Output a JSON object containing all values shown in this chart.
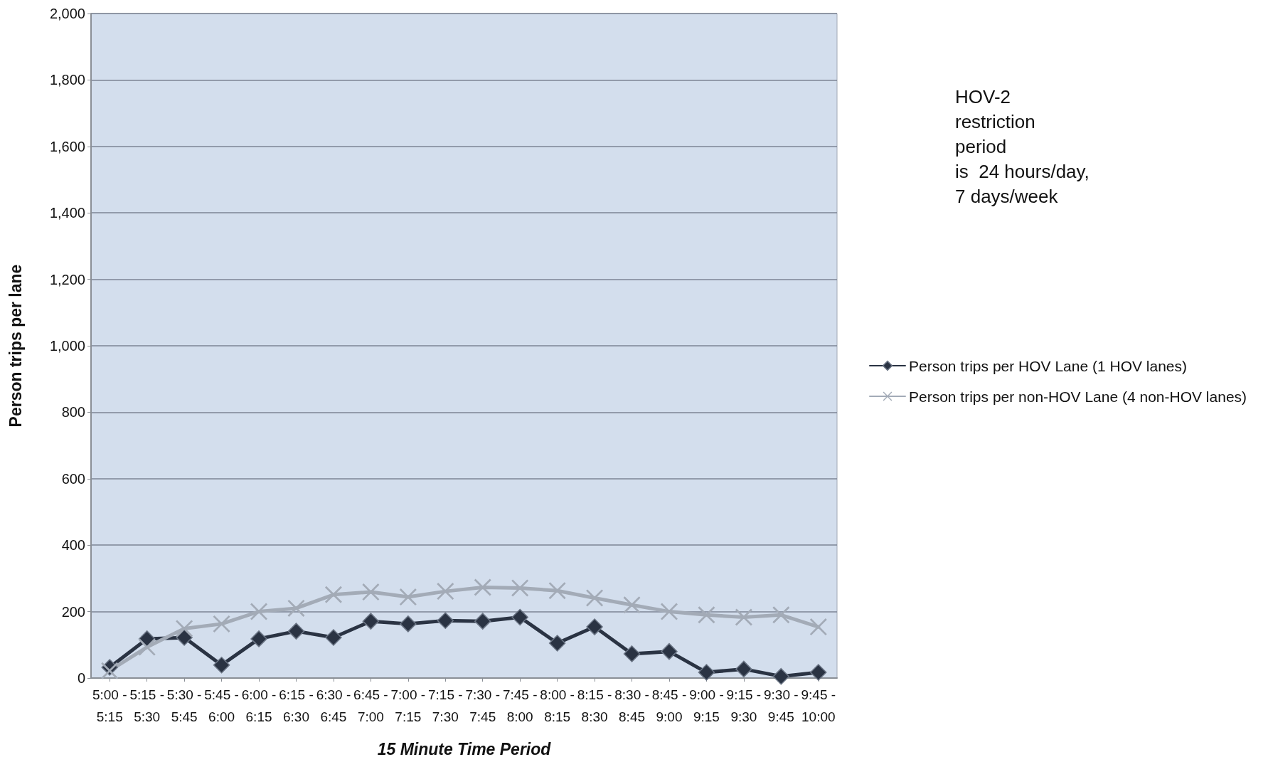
{
  "chart_data": {
    "type": "line",
    "categories": [
      "5:00 -\n5:15",
      "5:15 -\n5:30",
      "5:30 -\n5:45",
      "5:45 -\n6:00",
      "6:00 -\n6:15",
      "6:15 -\n6:30",
      "6:30 -\n6:45",
      "6:45 -\n7:00",
      "7:00 -\n7:15",
      "7:15 -\n7:30",
      "7:30 -\n7:45",
      "7:45 -\n8:00",
      "8:00 -\n8:15",
      "8:15 -\n8:30",
      "8:30 -\n8:45",
      "8:45 -\n9:00",
      "9:00 -\n9:15",
      "9:15 -\n9:30",
      "9:30 -\n9:45",
      "9:45 -\n10:00"
    ],
    "series": [
      {
        "name": "Person trips per HOV Lane (1 HOV lanes)",
        "color": "#2a3343",
        "marker": "diamond",
        "values": [
          32,
          118,
          122,
          39,
          118,
          141,
          122,
          171,
          163,
          173,
          171,
          183,
          105,
          154,
          73,
          80,
          17,
          27,
          5,
          17
        ]
      },
      {
        "name": "Person trips per non-HOV Lane (4 non-HOV lanes)",
        "color": "#a3abb7",
        "marker": "cross",
        "values": [
          22,
          93,
          149,
          163,
          200,
          210,
          251,
          259,
          244,
          261,
          273,
          271,
          263,
          241,
          220,
          200,
          190,
          183,
          190,
          154
        ]
      }
    ],
    "xlabel": "15 Minute Time Period",
    "ylabel": "Person trips per lane",
    "ylim": [
      0,
      2000
    ],
    "yticks": [
      0,
      200,
      400,
      600,
      800,
      {
        "value": 1000,
        "label": "1,000"
      },
      {
        "value": 1200,
        "label": "1,200"
      },
      {
        "value": 1400,
        "label": "1,400"
      },
      {
        "value": 1600,
        "label": "1,600"
      },
      {
        "value": 1800,
        "label": "1,800"
      },
      {
        "value": 2000,
        "label": "2,000"
      }
    ],
    "grid": "y",
    "legend": "right",
    "annotations": [
      "HOV-2\nrestriction\nperiod\nis  24 hours/day,\n7 days/week"
    ]
  }
}
